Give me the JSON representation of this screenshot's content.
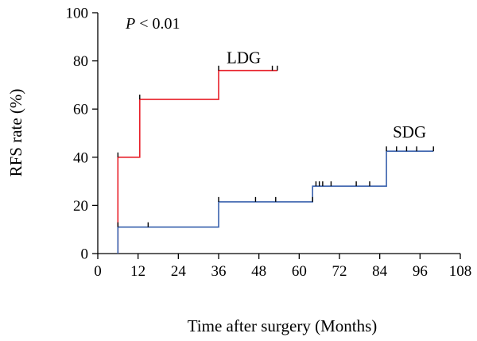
{
  "chart_data": {
    "type": "line",
    "subtype": "kaplan-meier-step",
    "xlabel": "Time after surgery (Months)",
    "ylabel": "RFS rate (%)",
    "xlim": [
      0,
      108
    ],
    "ylim": [
      0,
      100
    ],
    "xticks": [
      0,
      12,
      24,
      36,
      48,
      60,
      72,
      84,
      96,
      108
    ],
    "xtick_labels": [
      "0",
      "12",
      "24",
      "36",
      "48",
      "60",
      "72",
      "84",
      "96",
      "108"
    ],
    "yticks": [
      0,
      20,
      40,
      60,
      80,
      100
    ],
    "ytick_labels": [
      "0",
      "20",
      "40",
      "60",
      "80",
      "100"
    ],
    "grid": false,
    "legend": "none",
    "annotation": {
      "prefix": "P",
      "text": " < 0.01"
    },
    "series": [
      {
        "name": "LDG",
        "color": "#e8202a",
        "steps": [
          [
            6,
            0
          ],
          [
            6,
            40
          ],
          [
            12.5,
            40
          ],
          [
            12.5,
            64
          ],
          [
            36,
            64
          ],
          [
            36,
            76
          ],
          [
            53.5,
            76
          ]
        ],
        "censored": [
          [
            6,
            40
          ],
          [
            12.5,
            64
          ],
          [
            36,
            76
          ],
          [
            52,
            76
          ],
          [
            53.5,
            76
          ]
        ]
      },
      {
        "name": "SDG",
        "color": "#3a62ad",
        "steps": [
          [
            6,
            0
          ],
          [
            6,
            11
          ],
          [
            36,
            11
          ],
          [
            36,
            21.5
          ],
          [
            64,
            21.5
          ],
          [
            64,
            28
          ],
          [
            86,
            28
          ],
          [
            86,
            42.5
          ],
          [
            100,
            42.5
          ]
        ],
        "censored": [
          [
            6,
            11
          ],
          [
            15,
            11
          ],
          [
            36,
            21.5
          ],
          [
            47,
            21.5
          ],
          [
            53,
            21.5
          ],
          [
            64,
            21.5
          ],
          [
            65,
            28
          ],
          [
            66,
            28
          ],
          [
            67,
            28
          ],
          [
            69.5,
            28
          ],
          [
            77,
            28
          ],
          [
            81,
            28
          ],
          [
            86,
            42.5
          ],
          [
            89,
            42.5
          ],
          [
            92,
            42.5
          ],
          [
            95,
            42.5
          ],
          [
            100,
            42.5
          ]
        ]
      }
    ]
  }
}
